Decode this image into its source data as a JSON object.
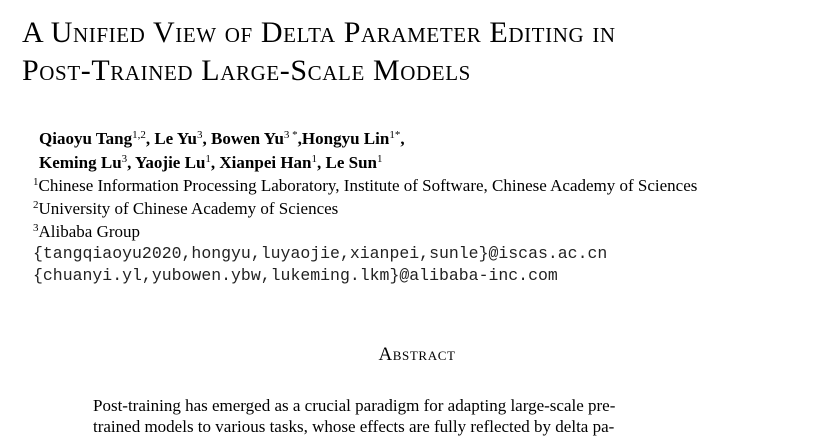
{
  "paper": {
    "title_lines": [
      "A Unified View of Delta Parameter Editing in",
      "Post-Trained Large-Scale Models"
    ],
    "authors": {
      "line1": [
        {
          "name": "Qiaoyu Tang",
          "sup": "1,2",
          "sep": ", "
        },
        {
          "name": "Le Yu",
          "sup": "3",
          "sep": ", "
        },
        {
          "name": "Bowen Yu",
          "sup": "3 *",
          "sep": ","
        },
        {
          "name": "Hongyu Lin",
          "sup": "1*",
          "sep": ","
        }
      ],
      "line2": [
        {
          "name": "Keming Lu",
          "sup": "3",
          "sep": ", "
        },
        {
          "name": "Yaojie Lu",
          "sup": "1",
          "sep": ", "
        },
        {
          "name": "Xianpei Han",
          "sup": "1",
          "sep": ", "
        },
        {
          "name": "Le Sun",
          "sup": "1",
          "sep": ""
        }
      ]
    },
    "affiliations": [
      {
        "sup": "1",
        "text": "Chinese Information Processing Laboratory, Institute of Software, Chinese Academy of Sciences"
      },
      {
        "sup": "2",
        "text": "University of Chinese Academy of Sciences"
      },
      {
        "sup": "3",
        "text": "Alibaba Group"
      }
    ],
    "emails": [
      "{tangqiaoyu2020,hongyu,luyaojie,xianpei,sunle}@iscas.ac.cn",
      "{chuanyi.yl,yubowen.ybw,lukeming.lkm}@alibaba-inc.com"
    ],
    "abstract_heading": "Abstract",
    "abstract_lines": [
      "Post-training has emerged as a crucial paradigm for adapting large-scale pre-",
      "trained models to various tasks, whose effects are fully reflected by delta pa-"
    ]
  }
}
